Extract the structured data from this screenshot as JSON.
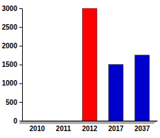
{
  "chart_data": {
    "type": "bar",
    "categories": [
      "2010",
      "2011",
      "2012",
      "2017",
      "2037"
    ],
    "values": [
      0,
      0,
      3000,
      1500,
      1750
    ],
    "colors": [
      "#0000cc",
      "#0000cc",
      "#ff0000",
      "#0000cc",
      "#0000cc"
    ],
    "ylim": [
      0,
      3000
    ],
    "yticks": [
      0,
      500,
      1000,
      1500,
      2000,
      2500,
      3000
    ]
  }
}
